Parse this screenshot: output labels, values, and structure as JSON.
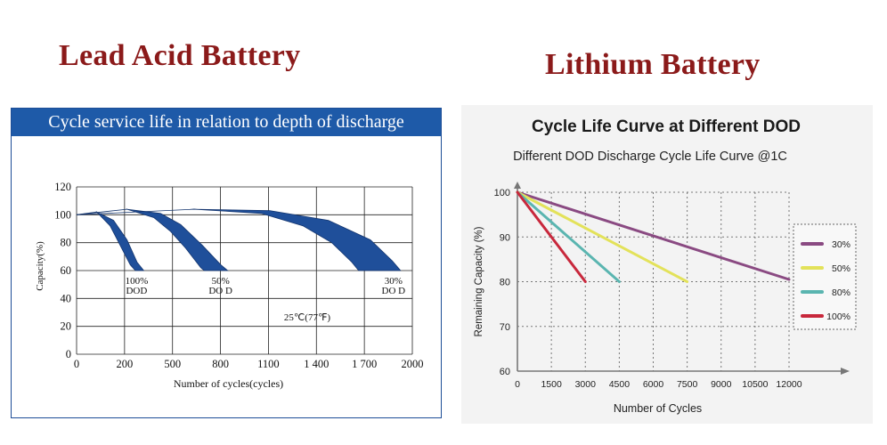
{
  "headings": {
    "lead": "Lead Acid Battery",
    "lithium": "Lithium Battery"
  },
  "chart_data": [
    {
      "type": "line",
      "title": "Cycle service life in relation to depth of discharge",
      "xlabel": "Number of cycles(cycles)",
      "ylabel": "Capacity(%)",
      "x_ticks": [
        "0",
        "200",
        "500",
        "800",
        "1100",
        "1 400",
        "1 700",
        "2000"
      ],
      "y_ticks": [
        "0",
        "20",
        "40",
        "60",
        "80",
        "100",
        "120"
      ],
      "xlim": [
        0,
        2000
      ],
      "ylim": [
        0,
        120
      ],
      "grid": true,
      "annotation": "25℃(77℉)",
      "series": [
        {
          "name": "100% DOD",
          "label_lines": [
            "100%",
            "DOD"
          ],
          "upper": [
            [
              0,
              100
            ],
            [
              120,
              102
            ],
            [
              220,
              96
            ],
            [
              300,
              82
            ],
            [
              360,
              66
            ],
            [
              400,
              60
            ]
          ],
          "lower": [
            [
              0,
              100
            ],
            [
              120,
              102
            ],
            [
              200,
              92
            ],
            [
              260,
              78
            ],
            [
              320,
              64
            ],
            [
              350,
              60
            ]
          ]
        },
        {
          "name": "50% DOD",
          "label_lines": [
            "50%",
            "DO D"
          ],
          "upper": [
            [
              0,
              100
            ],
            [
              300,
              104
            ],
            [
              500,
              101
            ],
            [
              620,
              93
            ],
            [
              750,
              78
            ],
            [
              860,
              64
            ],
            [
              900,
              60
            ]
          ],
          "lower": [
            [
              0,
              100
            ],
            [
              300,
              104
            ],
            [
              460,
              98
            ],
            [
              560,
              88
            ],
            [
              650,
              76
            ],
            [
              740,
              62
            ],
            [
              760,
              60
            ]
          ]
        },
        {
          "name": "30% DOD",
          "label_lines": [
            "30%",
            "DO D"
          ],
          "upper": [
            [
              0,
              100
            ],
            [
              700,
              104
            ],
            [
              1150,
              103
            ],
            [
              1500,
              96
            ],
            [
              1750,
              82
            ],
            [
              1880,
              67
            ],
            [
              1930,
              60
            ]
          ],
          "lower": [
            [
              0,
              100
            ],
            [
              700,
              104
            ],
            [
              1100,
              101
            ],
            [
              1350,
              92
            ],
            [
              1520,
              80
            ],
            [
              1640,
              66
            ],
            [
              1680,
              60
            ]
          ]
        }
      ]
    },
    {
      "type": "line",
      "title": "Cycle Life Curve at Different DOD",
      "subtitle": "Different DOD Discharge Cycle Life Curve @1C",
      "xlabel": "Number of Cycles",
      "ylabel": "Remaining Capacity (%)",
      "x_ticks": [
        "0",
        "1500",
        "3000",
        "4500",
        "6000",
        "7500",
        "9000",
        "10500",
        "12000"
      ],
      "y_ticks": [
        "60",
        "70",
        "80",
        "90",
        "100"
      ],
      "xlim": [
        0,
        12000
      ],
      "ylim": [
        60,
        100
      ],
      "grid": true,
      "legend_position": "right",
      "series": [
        {
          "name": "30%",
          "color": "#8a4a82",
          "x": [
            0,
            12000
          ],
          "y": [
            100,
            80.5
          ]
        },
        {
          "name": "50%",
          "color": "#e3e25a",
          "x": [
            0,
            7500
          ],
          "y": [
            100,
            80
          ]
        },
        {
          "name": "80%",
          "color": "#5ab5b0",
          "x": [
            0,
            4500
          ],
          "y": [
            100,
            80
          ]
        },
        {
          "name": "100%",
          "color": "#c8283c",
          "x": [
            0,
            3000
          ],
          "y": [
            100,
            80
          ]
        }
      ]
    }
  ]
}
